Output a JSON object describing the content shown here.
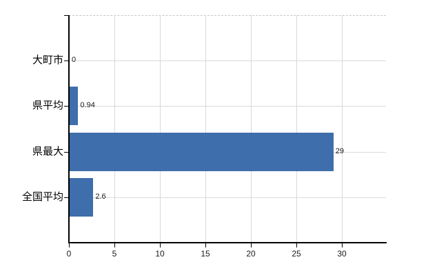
{
  "chart_data": {
    "type": "bar",
    "orientation": "horizontal",
    "title": "",
    "xlabel": "",
    "ylabel": "",
    "categories": [
      "大町市",
      "県平均",
      "県最大",
      "全国平均"
    ],
    "values": [
      0,
      0.94,
      29,
      2.6
    ],
    "value_labels": [
      "0",
      "0.94",
      "29",
      "2.6"
    ],
    "x_ticks": [
      0,
      5,
      10,
      15,
      20,
      25,
      30
    ],
    "x_tick_labels": [
      "0",
      "5",
      "10",
      "15",
      "20",
      "25",
      "30"
    ],
    "xlim": [
      0,
      34.85
    ],
    "grid": true,
    "legend": "none",
    "colors": {
      "bar": "#3e6eab",
      "axis": "#000000",
      "gridline": "#d9d9d9",
      "top_border_dashed": "#c7c7c7",
      "text": "#000000",
      "background": "#ffffff"
    }
  }
}
